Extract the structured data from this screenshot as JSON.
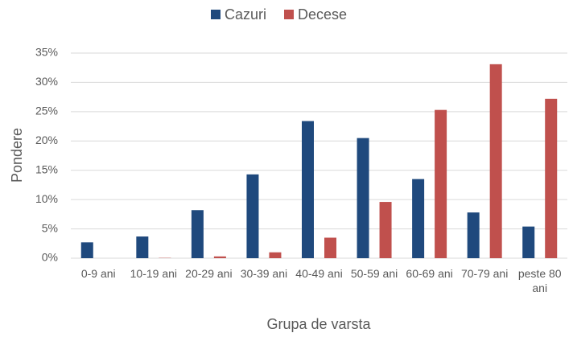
{
  "chart_data": {
    "type": "bar",
    "x_label": "Grupa de varsta",
    "y_label": "Pondere",
    "categories": [
      "0-9 ani",
      "10-19 ani",
      "20-29 ani",
      "30-39 ani",
      "40-49 ani",
      "50-59 ani",
      "60-69 ani",
      "70-79 ani",
      "peste 80 ani"
    ],
    "series": [
      {
        "name": "Cazuri",
        "color": "#1f497d",
        "values": [
          2.7,
          3.7,
          8.2,
          14.3,
          23.4,
          20.5,
          13.5,
          7.8,
          5.4
        ]
      },
      {
        "name": "Decese",
        "color": "#c0504d",
        "values": [
          0,
          0.05,
          0.3,
          1.0,
          3.5,
          9.6,
          25.3,
          33.1,
          27.2
        ]
      }
    ],
    "ylim": [
      0,
      35
    ],
    "yticks": [
      {
        "value": 0,
        "label": "0%"
      },
      {
        "value": 5,
        "label": "5%"
      },
      {
        "value": 10,
        "label": "10%"
      },
      {
        "value": 15,
        "label": "15%"
      },
      {
        "value": 20,
        "label": "20%"
      },
      {
        "value": 25,
        "label": "25%"
      },
      {
        "value": 30,
        "label": "30%"
      },
      {
        "value": 35,
        "label": "35%"
      }
    ],
    "grid": true,
    "legend": "top"
  }
}
